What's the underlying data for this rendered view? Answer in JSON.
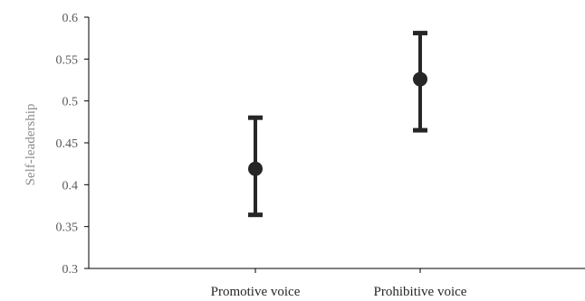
{
  "chart_data": {
    "type": "scatter",
    "title": "",
    "xlabel": "",
    "ylabel": "Self-leadership",
    "ylim": [
      0.3,
      0.6
    ],
    "y_ticks": [
      0.3,
      0.35,
      0.4,
      0.45,
      0.5,
      0.55,
      0.6
    ],
    "y_tick_labels": [
      "0.3",
      "0.35",
      "0.4",
      "0.45",
      "0.5",
      "0.55",
      "0.6"
    ],
    "categories": [
      "Promotive voice",
      "Prohibitive voice"
    ],
    "series": [
      {
        "values": [
          0.419,
          0.526
        ],
        "error_low": [
          0.364,
          0.465
        ],
        "error_high": [
          0.48,
          0.581
        ]
      }
    ],
    "grid": false,
    "legend": "none",
    "colors": {
      "marker": "#262626",
      "axis": "#000000",
      "tick_text": "#595959",
      "axis_title": "#8c8c8c"
    }
  }
}
